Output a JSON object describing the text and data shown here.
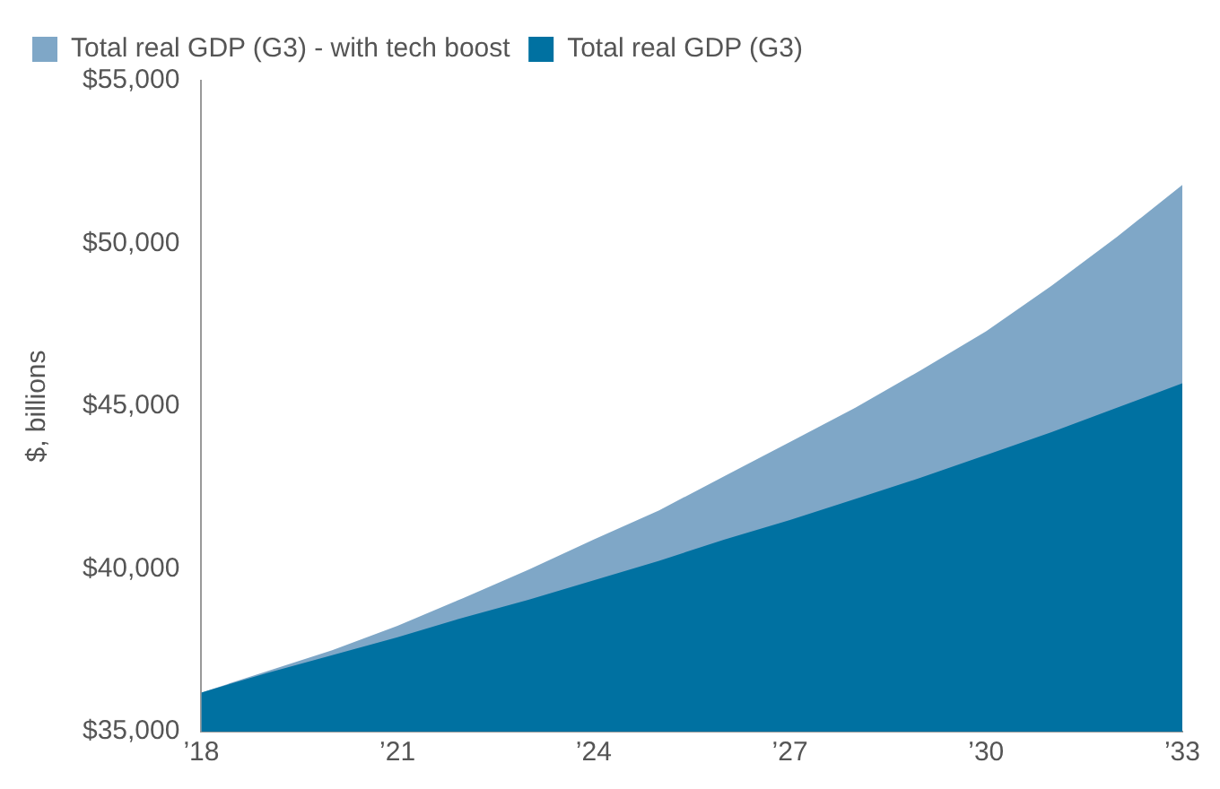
{
  "chart_data": {
    "type": "area",
    "ylabel": "$, billions",
    "x": [
      2018,
      2019,
      2020,
      2021,
      2022,
      2023,
      2024,
      2025,
      2026,
      2027,
      2028,
      2029,
      2030,
      2031,
      2032,
      2033
    ],
    "series": [
      {
        "name": "Total real GDP (G3) - with tech boost",
        "color": "#7fa7c7",
        "values": [
          36200,
          36850,
          37500,
          38250,
          39100,
          39970,
          40900,
          41800,
          42850,
          43900,
          44950,
          46100,
          47300,
          48700,
          50200,
          51800
        ]
      },
      {
        "name": "Total real GDP (G3)",
        "color": "#0071a1",
        "values": [
          36200,
          36800,
          37350,
          37900,
          38500,
          39050,
          39650,
          40250,
          40900,
          41500,
          42150,
          42800,
          43500,
          44200,
          44950,
          45700
        ]
      }
    ],
    "xlim": [
      2018,
      2033
    ],
    "xticks": [
      {
        "value": 2018,
        "label": "’18"
      },
      {
        "value": 2021,
        "label": "’21"
      },
      {
        "value": 2024,
        "label": "’24"
      },
      {
        "value": 2027,
        "label": "’27"
      },
      {
        "value": 2030,
        "label": "’30"
      },
      {
        "value": 2033,
        "label": "’33"
      }
    ],
    "ylim": [
      35000,
      55000
    ],
    "yticks": [
      {
        "value": 35000,
        "label": "$35,000"
      },
      {
        "value": 40000,
        "label": "$40,000"
      },
      {
        "value": 45000,
        "label": "$45,000"
      },
      {
        "value": 50000,
        "label": "$50,000"
      },
      {
        "value": 55000,
        "label": "$55,000"
      }
    ],
    "grid": false,
    "legend": "top left"
  }
}
